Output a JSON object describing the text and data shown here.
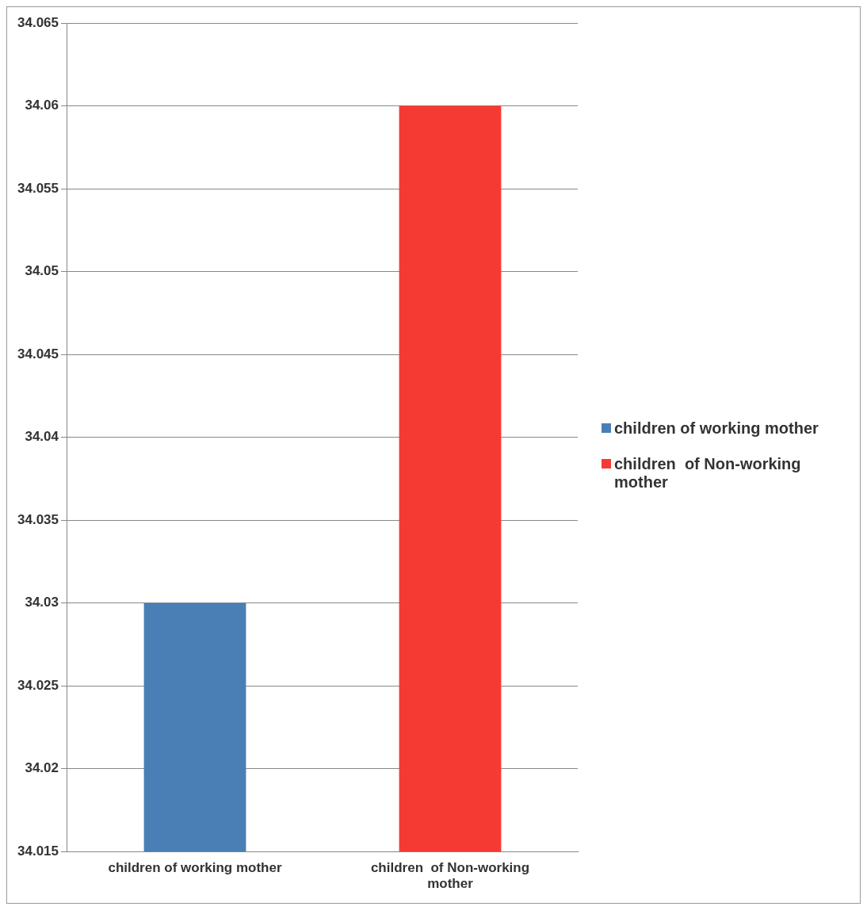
{
  "chart_data": {
    "type": "bar",
    "categories": [
      "children of working mother",
      "children  of Non-working mother"
    ],
    "series": [
      {
        "name": "children of working mother",
        "color": "#4a7fb5",
        "values": [
          34.03,
          null
        ]
      },
      {
        "name": "children  of Non-working mother",
        "color": "#f53a33",
        "values": [
          null,
          34.06
        ]
      }
    ],
    "ylim": [
      34.015,
      34.065
    ],
    "yticks": [
      34.015,
      34.02,
      34.025,
      34.03,
      34.035,
      34.04,
      34.045,
      34.05,
      34.055,
      34.06,
      34.065
    ],
    "grid": "y",
    "legend": "right"
  }
}
